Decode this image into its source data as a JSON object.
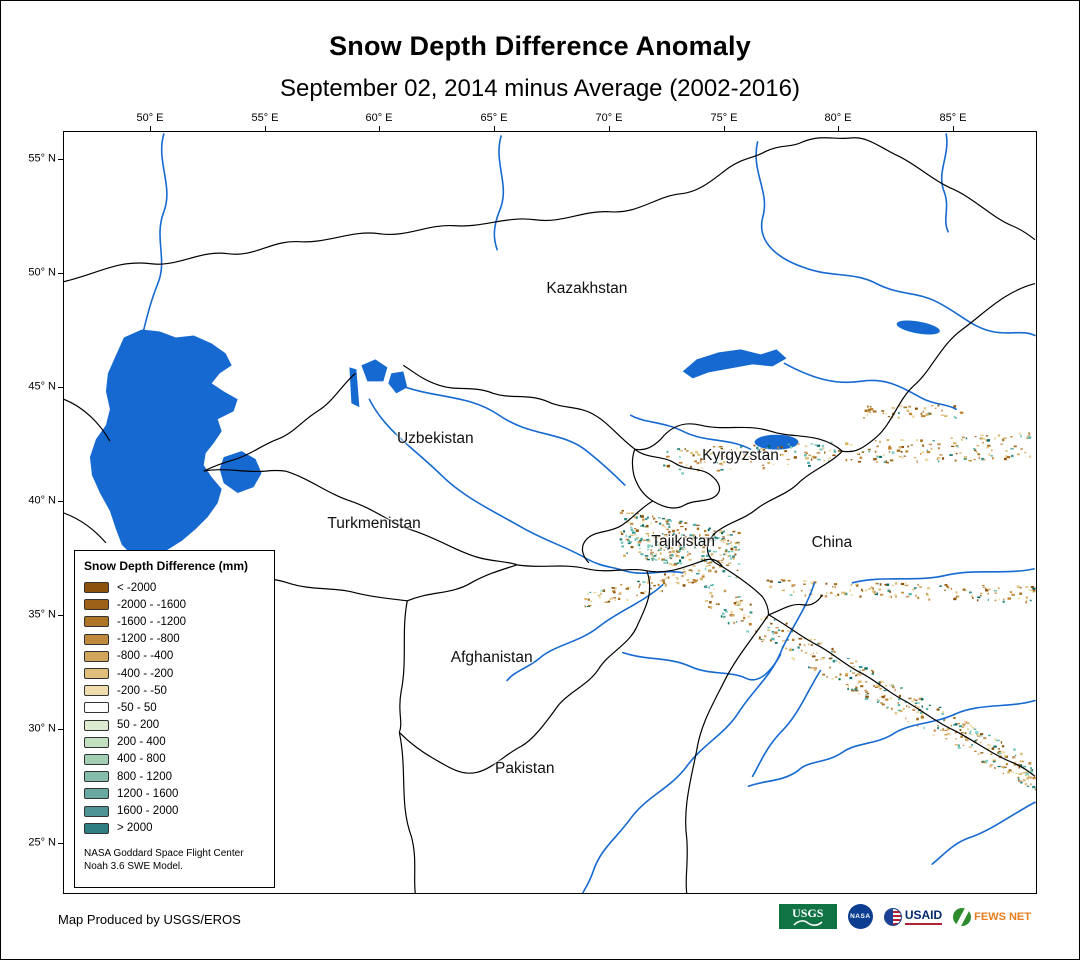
{
  "title": "Snow Depth Difference Anomaly",
  "subtitle": "September 02, 2014 minus Average (2002-2016)",
  "colors": {
    "water": "#1569d0",
    "map_border": "#000000",
    "background": "#ffffff"
  },
  "axes": {
    "top_ticks": [
      "50° E",
      "55° E",
      "60° E",
      "65° E",
      "70° E",
      "75° E",
      "80° E",
      "85° E"
    ],
    "left_ticks": [
      "55° N",
      "50° N",
      "45° N",
      "40° N",
      "35° N",
      "30° N",
      "25° N"
    ]
  },
  "map": {
    "country_labels": [
      {
        "name": "Kazakhstan"
      },
      {
        "name": "Uzbekistan"
      },
      {
        "name": "Turkmenistan"
      },
      {
        "name": "Kyrgyzstan"
      },
      {
        "name": "Tajikistan"
      },
      {
        "name": "China"
      },
      {
        "name": "Afghanistan"
      },
      {
        "name": "Pakistan"
      }
    ]
  },
  "legend": {
    "title": "Snow Depth Difference (mm)",
    "entries": [
      {
        "label": "< -2000",
        "color": "#8c510a"
      },
      {
        "label": "-2000 - -1600",
        "color": "#9d6218"
      },
      {
        "label": "-1600 - -1200",
        "color": "#ae7527"
      },
      {
        "label": "-1200 - -800",
        "color": "#c08a3e"
      },
      {
        "label": "-800 - -400",
        "color": "#d2a55c"
      },
      {
        "label": "-400 - -200",
        "color": "#e0bf7d"
      },
      {
        "label": "-200 - -50",
        "color": "#efddad"
      },
      {
        "label": "-50 - 50",
        "color": "#ffffff"
      },
      {
        "label": "50 - 200",
        "color": "#ddecd0"
      },
      {
        "label": "200 - 400",
        "color": "#c2dfc0"
      },
      {
        "label": "400 - 800",
        "color": "#a3cdb4"
      },
      {
        "label": "800 - 1200",
        "color": "#86bcab"
      },
      {
        "label": "1200 - 1600",
        "color": "#6aa9a1"
      },
      {
        "label": "1600 - 2000",
        "color": "#4f9494"
      },
      {
        "label": "> 2000",
        "color": "#2e7e82"
      }
    ],
    "credit_line1": "NASA Goddard Space Flight Center",
    "credit_line2": "Noah 3.6 SWE Model."
  },
  "footer": {
    "produced_by": "Map Produced by USGS/EROS"
  },
  "logos": {
    "usgs": "USGS",
    "nasa": "NASA",
    "usaid": "USAID",
    "fewsnet": "FEWS NET"
  }
}
